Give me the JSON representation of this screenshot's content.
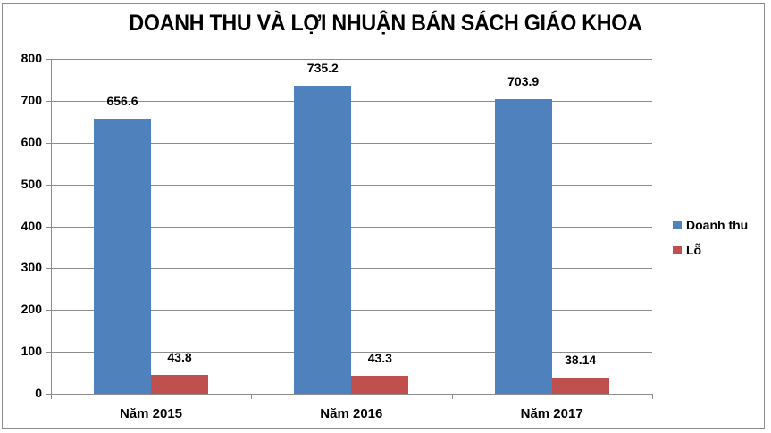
{
  "chart_data": {
    "type": "bar",
    "title": "DOANH THU VÀ LỢI NHUẬN BÁN SÁCH GIÁO KHOA",
    "categories": [
      "Năm 2015",
      "Năm 2016",
      "Năm 2017"
    ],
    "series": [
      {
        "name": "Doanh thu",
        "color": "#4f81bd",
        "values": [
          656.6,
          735.2,
          703.9
        ],
        "labels": [
          "656.6",
          "735.2",
          "703.9"
        ]
      },
      {
        "name": "Lỗ",
        "color": "#c0504d",
        "values": [
          43.8,
          43.3,
          38.14
        ],
        "labels": [
          "43.8",
          "43.3",
          "38.14"
        ]
      }
    ],
    "xlabel": "",
    "ylabel": "",
    "ylim": [
      0,
      800
    ],
    "yticks": [
      "0",
      "100",
      "200",
      "300",
      "400",
      "500",
      "600",
      "700",
      "800"
    ],
    "grid": true,
    "legend_position": "right"
  }
}
